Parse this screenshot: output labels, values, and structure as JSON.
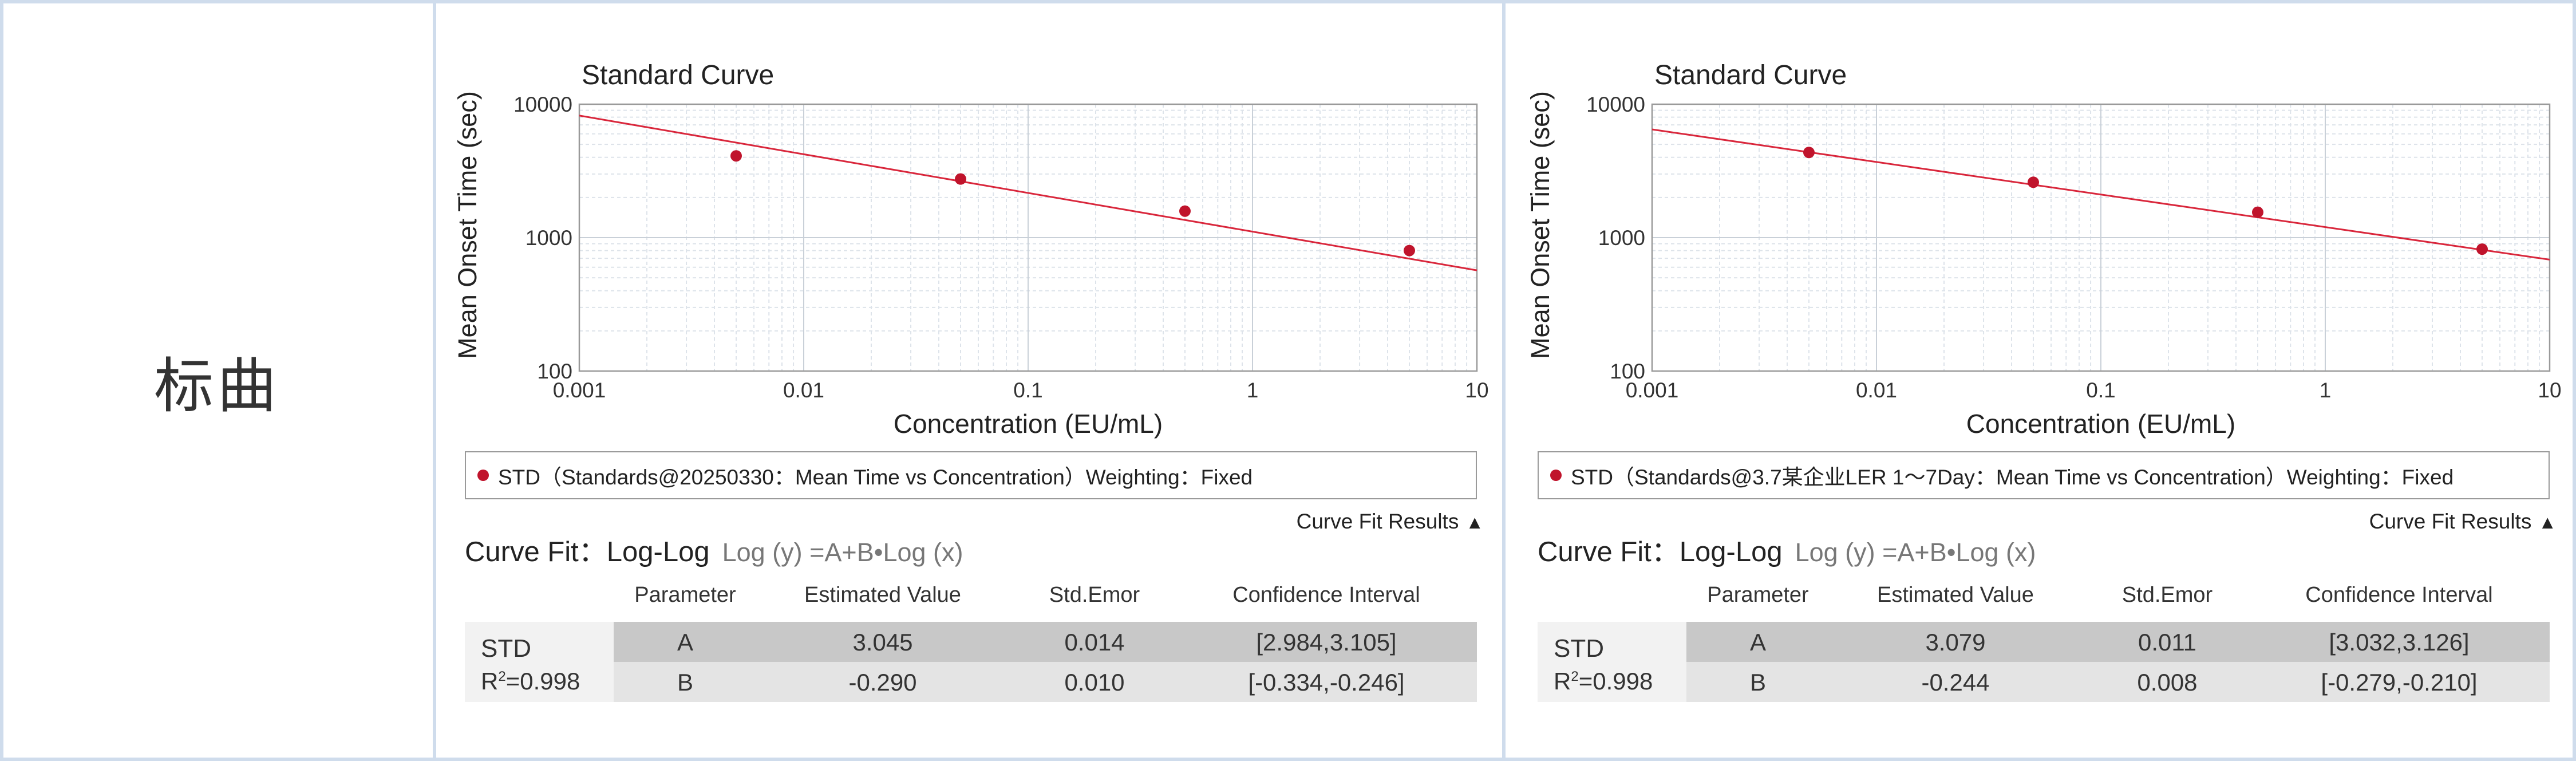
{
  "row_label": "标曲",
  "colors": {
    "line": "#d9263b",
    "point": "#c0142c",
    "grid": "#dde3ea",
    "border": "#cfdcec",
    "row_dark": "#c8c8c8",
    "row_light": "#e4e4e4"
  },
  "panels": [
    {
      "title": "Standard Curve",
      "legend": "STD（Standards@20250330：Mean Time vs Concentration）Weighting：Fixed",
      "curve_fit_results_label": "Curve Fit Results",
      "fit_label": "Curve Fit：Log-Log",
      "fit_equation": "Log (y) =A+B•Log (x)",
      "table_headers": [
        "Parameter",
        "Estimated Value",
        "Std.Emor",
        "Confidence Interval"
      ],
      "std_name": "STD",
      "r2_prefix": "R",
      "r2_sup": "2",
      "r2_value": "=0.998",
      "rows": [
        {
          "param": "A",
          "estimate": "3.045",
          "std_error": "0.014",
          "ci": "[2.984,3.105]"
        },
        {
          "param": "B",
          "estimate": "-0.290",
          "std_error": "0.010",
          "ci": "[-0.334,-0.246]"
        }
      ]
    },
    {
      "title": "Standard Curve",
      "legend": "STD（Standards@3.7某企业LER 1～7Day：Mean Time vs Concentration）Weighting：Fixed",
      "curve_fit_results_label": "Curve Fit Results",
      "fit_label": "Curve Fit：Log-Log",
      "fit_equation": "Log (y) =A+B•Log (x)",
      "table_headers": [
        "Parameter",
        "Estimated Value",
        "Std.Emor",
        "Confidence Interval"
      ],
      "std_name": "STD",
      "r2_prefix": "R",
      "r2_sup": "2",
      "r2_value": "=0.998",
      "rows": [
        {
          "param": "A",
          "estimate": "3.079",
          "std_error": "0.011",
          "ci": "[3.032,3.126]"
        },
        {
          "param": "B",
          "estimate": "-0.244",
          "std_error": "0.008",
          "ci": "[-0.279,-0.210]"
        }
      ]
    }
  ],
  "chart_data": [
    {
      "type": "scatter",
      "title": "Standard Curve",
      "xlabel": "Concentration (EU/mL)",
      "ylabel": "Mean Onset Time (sec)",
      "xscale": "log",
      "yscale": "log",
      "xlim": [
        0.001,
        10
      ],
      "ylim": [
        100,
        10000
      ],
      "xticks": [
        "0.001",
        "0.01",
        "0.1",
        "1",
        "10"
      ],
      "yticks": [
        "100",
        "1000",
        "10000"
      ],
      "grid": true,
      "series": [
        {
          "name": "STD",
          "x": [
            0.005,
            0.05,
            0.5,
            5
          ],
          "y": [
            4100,
            2750,
            1580,
            800
          ]
        }
      ],
      "fit": {
        "model": "log-log",
        "A": 3.045,
        "B": -0.29
      }
    },
    {
      "type": "scatter",
      "title": "Standard Curve",
      "xlabel": "Concentration (EU/mL)",
      "ylabel": "Mean Onset Time (sec)",
      "xscale": "log",
      "yscale": "log",
      "xlim": [
        0.001,
        10
      ],
      "ylim": [
        100,
        10000
      ],
      "xticks": [
        "0.001",
        "0.01",
        "0.1",
        "1",
        "10"
      ],
      "yticks": [
        "100",
        "1000",
        "10000"
      ],
      "grid": true,
      "series": [
        {
          "name": "STD",
          "x": [
            0.005,
            0.05,
            0.5,
            5
          ],
          "y": [
            4350,
            2600,
            1550,
            820
          ]
        }
      ],
      "fit": {
        "model": "log-log",
        "A": 3.079,
        "B": -0.244
      }
    }
  ]
}
